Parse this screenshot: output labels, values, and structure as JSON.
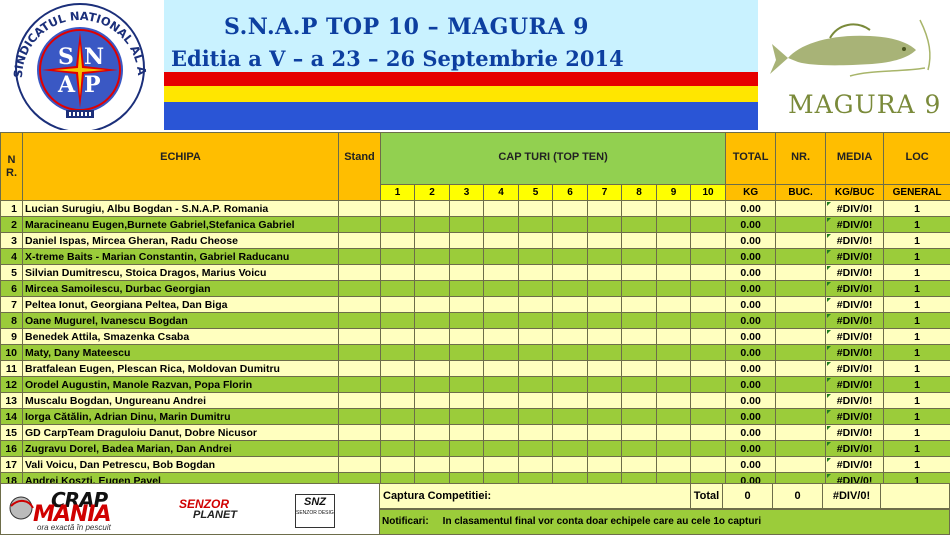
{
  "header": {
    "title_line1": "S.N.A.P    TOP 10 – MAGURA 9",
    "title_line2": "Editia a V – a 23 – 26 Septembrie 2014",
    "snap_logo_ring_text": "SINDICATUL NATIONAL AL AGENTILOR DE POLITIE",
    "snap_logo_letters": [
      "S",
      "N",
      "A",
      "P"
    ],
    "magura_logo_text": "MAGURA 9",
    "flag_colors": [
      "#e60000",
      "#ffe600",
      "#2a55d6"
    ]
  },
  "table": {
    "headers": {
      "nr": "N\nR.",
      "echipa": "ECHIPA",
      "stand": "Stand",
      "cap_turi": "CAP TURI (TOP TEN)",
      "total": "TOTAL",
      "total_unit": "KG",
      "nr_buc": "NR.",
      "nr_buc_unit": "BUC.",
      "media": "MEDIA",
      "media_unit": "KG/BUC",
      "loc": "LOC",
      "loc_unit": "GENERAL"
    },
    "capture_numbers": [
      "1",
      "2",
      "3",
      "4",
      "5",
      "6",
      "7",
      "8",
      "9",
      "10"
    ],
    "rows": [
      {
        "nr": "1",
        "team": "Lucian Surugiu, Albu Bogdan - S.N.A.P. Romania",
        "total": "0.00",
        "media": "#DIV/0!",
        "loc": "1"
      },
      {
        "nr": "2",
        "team": "Maracineanu Eugen,Burnete Gabriel,Stefanica Gabriel",
        "total": "0.00",
        "media": "#DIV/0!",
        "loc": "1"
      },
      {
        "nr": "3",
        "team": "Daniel Ispas,  Mircea Gheran, Radu Cheose",
        "total": "0.00",
        "media": "#DIV/0!",
        "loc": "1"
      },
      {
        "nr": "4",
        "team": "X-treme Baits - Marian Constantin, Gabriel Raducanu",
        "total": "0.00",
        "media": "#DIV/0!",
        "loc": "1"
      },
      {
        "nr": "5",
        "team": "Silvian Dumitrescu, Stoica Dragos, Marius Voicu",
        "total": "0.00",
        "media": "#DIV/0!",
        "loc": "1"
      },
      {
        "nr": "6",
        "team": "Mircea Samoilescu, Durbac Georgian",
        "total": "0.00",
        "media": "#DIV/0!",
        "loc": "1"
      },
      {
        "nr": "7",
        "team": "Peltea Ionut, Georgiana Peltea, Dan Biga",
        "total": "0.00",
        "media": "#DIV/0!",
        "loc": "1"
      },
      {
        "nr": "8",
        "team": "Oane Mugurel, Ivanescu Bogdan",
        "total": "0.00",
        "media": "#DIV/0!",
        "loc": "1"
      },
      {
        "nr": "9",
        "team": "Benedek Attila, Smazenka Csaba",
        "total": "0.00",
        "media": "#DIV/0!",
        "loc": "1"
      },
      {
        "nr": "10",
        "team": "Maty, Dany Mateescu",
        "total": "0.00",
        "media": "#DIV/0!",
        "loc": "1"
      },
      {
        "nr": "11",
        "team": "Bratfalean Eugen, Plescan Rica, Moldovan Dumitru",
        "total": "0.00",
        "media": "#DIV/0!",
        "loc": "1"
      },
      {
        "nr": "12",
        "team": "Orodel Augustin, Manole Razvan, Popa Florin",
        "total": "0.00",
        "media": "#DIV/0!",
        "loc": "1"
      },
      {
        "nr": "13",
        "team": "Muscalu Bogdan, Ungureanu Andrei",
        "total": "0.00",
        "media": "#DIV/0!",
        "loc": "1"
      },
      {
        "nr": "14",
        "team": "Iorga Cătălin, Adrian Dinu, Marin Dumitru",
        "total": "0.00",
        "media": "#DIV/0!",
        "loc": "1"
      },
      {
        "nr": "15",
        "team": "GD CarpTeam  Draguloiu Danut, Dobre Nicusor",
        "total": "0.00",
        "media": "#DIV/0!",
        "loc": "1"
      },
      {
        "nr": "16",
        "team": "Zugravu Dorel, Badea Marian, Dan Andrei",
        "total": "0.00",
        "media": "#DIV/0!",
        "loc": "1"
      },
      {
        "nr": "17",
        "team": "Vali Voicu, Dan Petrescu, Bob Bogdan",
        "total": "0.00",
        "media": "#DIV/0!",
        "loc": "1"
      },
      {
        "nr": "18",
        "team": "Andrei Koszti, Eugen Pavel",
        "total": "0.00",
        "media": "#DIV/0!",
        "loc": "1"
      }
    ]
  },
  "footer": {
    "captura_label": "Captura Competitiei:",
    "total_label": "Total",
    "total_kg": "0",
    "total_buc": "0",
    "total_media": "#DIV/0!",
    "notif_label": "Notificari:",
    "notif_text": "In clasamentul final vor conta doar echipele care au cele 1o capturi",
    "sponsor1_top": "CRAP",
    "sponsor1_bottom": "MANIA",
    "sponsor1_tagline": "ora exactă în pescuit",
    "sponsor2_top": "SENZOR",
    "sponsor2_bottom": "PLANET",
    "sponsor3_top": "SNZ",
    "sponsor3_bottom": "SENZOR DESIGN"
  },
  "colors": {
    "header_orange": "#ffbe00",
    "header_green": "#92d050",
    "row_light": "#ffffbf",
    "row_green": "#9bcc3a",
    "title_blue": "#0d3fa0"
  }
}
